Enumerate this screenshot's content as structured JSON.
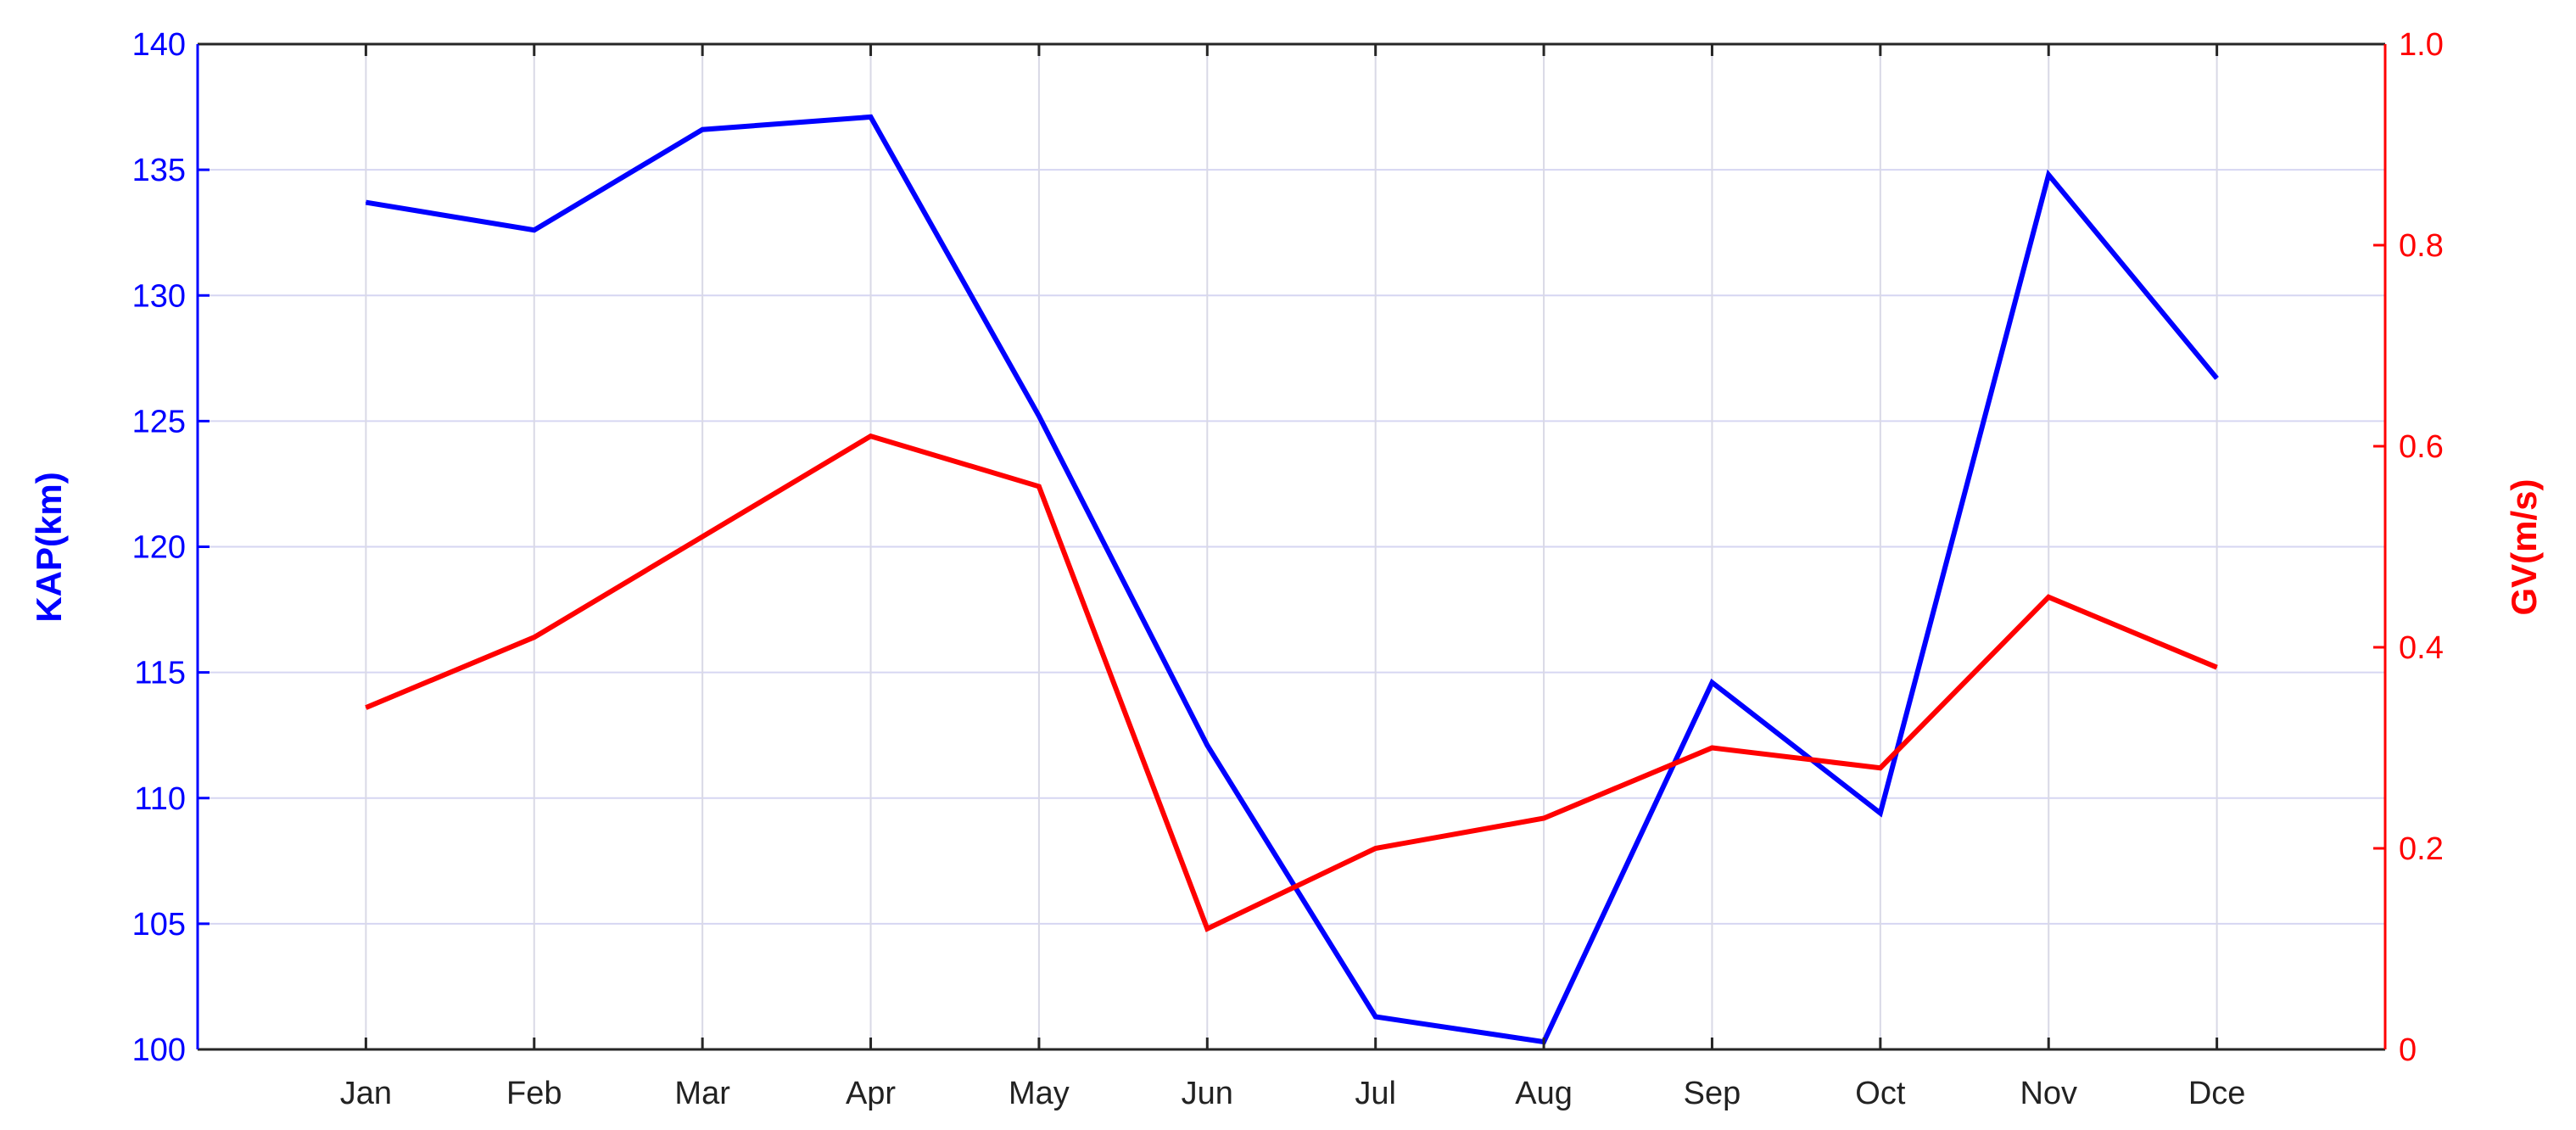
{
  "chart_data": {
    "type": "line",
    "categories": [
      "Jan",
      "Feb",
      "Mar",
      "Apr",
      "May",
      "Jun",
      "Jul",
      "Aug",
      "Sep",
      "Oct",
      "Nov",
      "Dce"
    ],
    "series": [
      {
        "axis": "left",
        "color": "#0000ff",
        "values": [
          133.7,
          132.6,
          136.6,
          137.1,
          125.2,
          112.1,
          101.3,
          100.3,
          114.6,
          109.4,
          134.8,
          126.7
        ]
      },
      {
        "axis": "right",
        "color": "#ff0000",
        "values": [
          0.34,
          0.41,
          0.51,
          0.61,
          0.56,
          0.12,
          0.2,
          0.23,
          0.3,
          0.28,
          0.45,
          0.38
        ]
      }
    ],
    "ylabel_left": "KAP(km)",
    "ylabel_right": "GV(m/s)",
    "ylim_left": [
      100,
      140
    ],
    "ylim_right": [
      0,
      1
    ],
    "yticks_left": [
      "100",
      "105",
      "110",
      "115",
      "120",
      "125",
      "130",
      "135",
      "140"
    ],
    "yticks_right": [
      "0",
      "0.2",
      "0.4",
      "0.6",
      "0.8",
      "1.0"
    ],
    "grid": true,
    "colors": {
      "left_axis": "#0000ff",
      "right_axis": "#ff0000",
      "box": "#262626",
      "grid": "#d6d6f2"
    }
  }
}
